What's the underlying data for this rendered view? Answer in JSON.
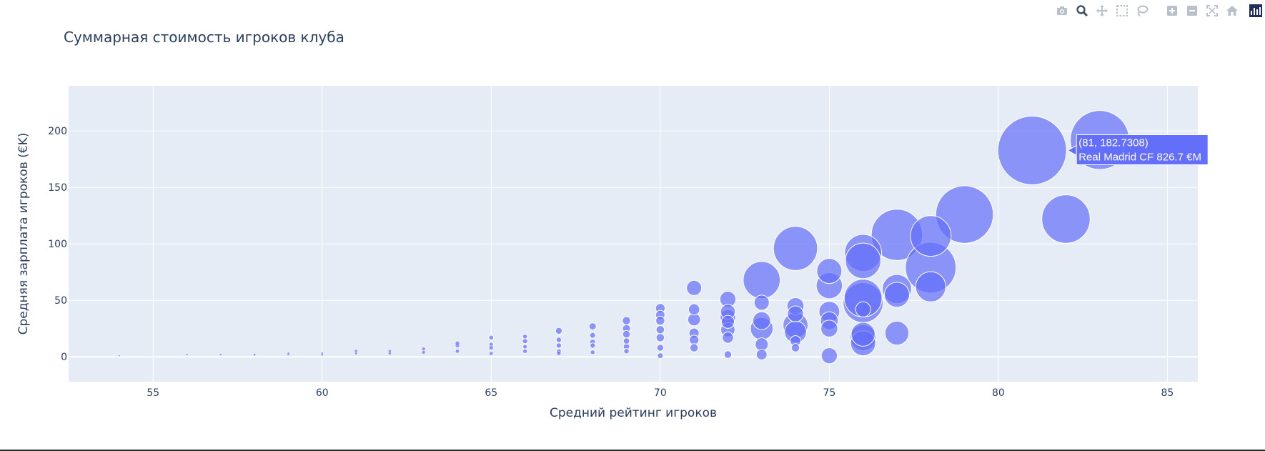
{
  "chart_data": {
    "type": "scatter",
    "title": "Суммарная стоимость игроков клуба",
    "xlabel": "Средний рейтинг игроков",
    "ylabel": "Средняя зарплата игроков (€K)",
    "xlim": [
      52.5,
      85.9
    ],
    "ylim": [
      -22,
      240
    ],
    "xticks": [
      55,
      60,
      65,
      70,
      75,
      80,
      85
    ],
    "yticks": [
      0,
      50,
      100,
      150,
      200
    ],
    "grid": true,
    "marker_color": "#636efa",
    "background": "#e5ecf6",
    "size_meaning": "Суммарная стоимость игроков клуба (€M)",
    "points": [
      {
        "x": 54,
        "y": 1,
        "size": 0.5
      },
      {
        "x": 56,
        "y": 2,
        "size": 0.8
      },
      {
        "x": 57,
        "y": 2,
        "size": 0.8
      },
      {
        "x": 58,
        "y": 2,
        "size": 1
      },
      {
        "x": 59,
        "y": 2,
        "size": 1
      },
      {
        "x": 59,
        "y": 3,
        "size": 1
      },
      {
        "x": 60,
        "y": 2,
        "size": 1
      },
      {
        "x": 60,
        "y": 3,
        "size": 1.2
      },
      {
        "x": 61,
        "y": 3,
        "size": 1.2
      },
      {
        "x": 61,
        "y": 5,
        "size": 1.5
      },
      {
        "x": 62,
        "y": 3,
        "size": 1.5
      },
      {
        "x": 62,
        "y": 5,
        "size": 1.6
      },
      {
        "x": 63,
        "y": 4,
        "size": 2
      },
      {
        "x": 63,
        "y": 7,
        "size": 2
      },
      {
        "x": 64,
        "y": 5,
        "size": 2.5
      },
      {
        "x": 64,
        "y": 10,
        "size": 3
      },
      {
        "x": 64,
        "y": 12,
        "size": 3
      },
      {
        "x": 65,
        "y": 3,
        "size": 2.5
      },
      {
        "x": 65,
        "y": 8,
        "size": 3
      },
      {
        "x": 65,
        "y": 11,
        "size": 3.5
      },
      {
        "x": 65,
        "y": 17,
        "size": 4
      },
      {
        "x": 66,
        "y": 5,
        "size": 3
      },
      {
        "x": 66,
        "y": 9,
        "size": 3.5
      },
      {
        "x": 66,
        "y": 14,
        "size": 5
      },
      {
        "x": 66,
        "y": 18,
        "size": 4
      },
      {
        "x": 67,
        "y": 3,
        "size": 3
      },
      {
        "x": 67,
        "y": 5,
        "size": 4
      },
      {
        "x": 67,
        "y": 10,
        "size": 5
      },
      {
        "x": 67,
        "y": 15,
        "size": 5
      },
      {
        "x": 67,
        "y": 23,
        "size": 8
      },
      {
        "x": 68,
        "y": 4,
        "size": 4
      },
      {
        "x": 68,
        "y": 10,
        "size": 5
      },
      {
        "x": 68,
        "y": 13,
        "size": 6
      },
      {
        "x": 68,
        "y": 19,
        "size": 6
      },
      {
        "x": 68,
        "y": 27,
        "size": 9
      },
      {
        "x": 69,
        "y": 5,
        "size": 5
      },
      {
        "x": 69,
        "y": 9,
        "size": 7
      },
      {
        "x": 69,
        "y": 14,
        "size": 7
      },
      {
        "x": 69,
        "y": 20,
        "size": 10
      },
      {
        "x": 69,
        "y": 25,
        "size": 11
      },
      {
        "x": 69,
        "y": 32,
        "size": 12
      },
      {
        "x": 70,
        "y": 1,
        "size": 6
      },
      {
        "x": 70,
        "y": 8,
        "size": 8
      },
      {
        "x": 70,
        "y": 17,
        "size": 12
      },
      {
        "x": 70,
        "y": 24,
        "size": 12
      },
      {
        "x": 70,
        "y": 32,
        "size": 14
      },
      {
        "x": 70,
        "y": 37,
        "size": 15
      },
      {
        "x": 70,
        "y": 43,
        "size": 16
      },
      {
        "x": 71,
        "y": 8,
        "size": 12
      },
      {
        "x": 71,
        "y": 15,
        "size": 16
      },
      {
        "x": 71,
        "y": 21,
        "size": 18
      },
      {
        "x": 71,
        "y": 33,
        "size": 28
      },
      {
        "x": 71,
        "y": 42,
        "size": 22
      },
      {
        "x": 71,
        "y": 61,
        "size": 40
      },
      {
        "x": 72,
        "y": 2,
        "size": 10
      },
      {
        "x": 72,
        "y": 17,
        "size": 22
      },
      {
        "x": 72,
        "y": 24,
        "size": 35
      },
      {
        "x": 72,
        "y": 31,
        "size": 30
      },
      {
        "x": 72,
        "y": 35,
        "size": 42
      },
      {
        "x": 72,
        "y": 40,
        "size": 38
      },
      {
        "x": 72,
        "y": 51,
        "size": 45
      },
      {
        "x": 73,
        "y": 2,
        "size": 20
      },
      {
        "x": 73,
        "y": 11,
        "size": 30
      },
      {
        "x": 73,
        "y": 25,
        "size": 90
      },
      {
        "x": 73,
        "y": 32,
        "size": 55
      },
      {
        "x": 73,
        "y": 48,
        "size": 40
      },
      {
        "x": 73,
        "y": 68,
        "size": 240
      },
      {
        "x": 74,
        "y": 8,
        "size": 12
      },
      {
        "x": 74,
        "y": 14,
        "size": 20
      },
      {
        "x": 74,
        "y": 22,
        "size": 85
      },
      {
        "x": 74,
        "y": 28,
        "size": 110
      },
      {
        "x": 74,
        "y": 38,
        "size": 45
      },
      {
        "x": 74,
        "y": 45,
        "size": 50
      },
      {
        "x": 74,
        "y": 96,
        "size": 340
      },
      {
        "x": 75,
        "y": 1,
        "size": 45
      },
      {
        "x": 75,
        "y": 25,
        "size": 50
      },
      {
        "x": 75,
        "y": 32,
        "size": 55
      },
      {
        "x": 75,
        "y": 40,
        "size": 75
      },
      {
        "x": 75,
        "y": 63,
        "size": 120
      },
      {
        "x": 75,
        "y": 76,
        "size": 110
      },
      {
        "x": 76,
        "y": 12,
        "size": 110
      },
      {
        "x": 76,
        "y": 17,
        "size": 120
      },
      {
        "x": 76,
        "y": 20,
        "size": 100
      },
      {
        "x": 76,
        "y": 42,
        "size": 40
      },
      {
        "x": 76,
        "y": 48,
        "size": 280
      },
      {
        "x": 76,
        "y": 52,
        "size": 250
      },
      {
        "x": 76,
        "y": 85,
        "size": 220
      },
      {
        "x": 76,
        "y": 92,
        "size": 240
      },
      {
        "x": 77,
        "y": 21,
        "size": 100
      },
      {
        "x": 77,
        "y": 55,
        "size": 110
      },
      {
        "x": 77,
        "y": 60,
        "size": 150
      },
      {
        "x": 77,
        "y": 108,
        "size": 460
      },
      {
        "x": 78,
        "y": 62,
        "size": 160
      },
      {
        "x": 78,
        "y": 79,
        "size": 450
      },
      {
        "x": 78,
        "y": 107,
        "size": 290
      },
      {
        "x": 79,
        "y": 126,
        "size": 580
      },
      {
        "x": 81,
        "y": 182.7308,
        "size": 826.7
      },
      {
        "x": 82,
        "y": 122,
        "size": 410
      },
      {
        "x": 83,
        "y": 192,
        "size": 610
      }
    ]
  },
  "hover": {
    "coords": "(81, 182.7308)",
    "label": "Real Madrid CF 826.7 €M"
  },
  "modebar": {
    "buttons": [
      "camera-icon",
      "zoom-icon",
      "pan-icon",
      "box-select-icon",
      "lasso-icon",
      "zoom-in-icon",
      "zoom-out-icon",
      "autoscale-icon",
      "home-icon",
      "plotly-logo-icon"
    ],
    "active": "zoom-icon"
  }
}
